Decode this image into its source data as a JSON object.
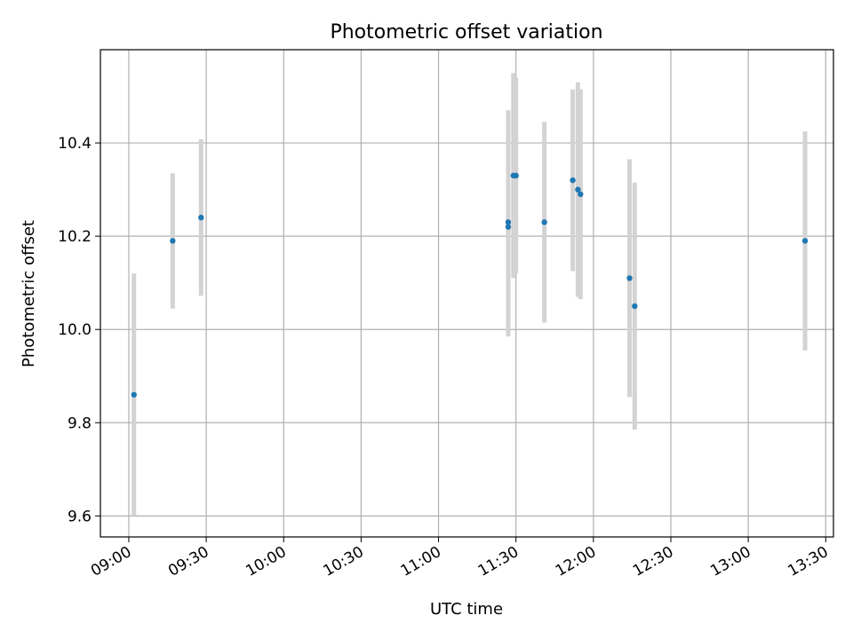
{
  "chart_data": {
    "type": "scatter",
    "title": "Photometric offset variation",
    "xlabel": "UTC time",
    "ylabel": "Photometric offset",
    "x_format": "HH:MM",
    "xlim": [
      "08:49",
      "13:33"
    ],
    "ylim": [
      9.555,
      10.6
    ],
    "x_ticks": [
      "09:00",
      "09:30",
      "10:00",
      "10:30",
      "11:00",
      "11:30",
      "12:00",
      "12:30",
      "13:00",
      "13:30"
    ],
    "y_ticks": [
      9.6,
      9.8,
      10.0,
      10.2,
      10.4
    ],
    "y_tick_labels": [
      "9.6",
      "9.8",
      "10.0",
      "10.2",
      "10.4"
    ],
    "grid": true,
    "colors": {
      "point": "#1f77b4",
      "errorbar": "#d3d3d3",
      "grid": "#b0b0b0"
    },
    "points": [
      {
        "x": "09:02",
        "y": 9.86,
        "err": 0.26
      },
      {
        "x": "09:17",
        "y": 10.19,
        "err": 0.145
      },
      {
        "x": "09:28",
        "y": 10.24,
        "err": 0.168
      },
      {
        "x": "11:27",
        "y": 10.23,
        "err": 0.24
      },
      {
        "x": "11:27",
        "y": 10.22,
        "err": 0.235
      },
      {
        "x": "11:29",
        "y": 10.33,
        "err": 0.22
      },
      {
        "x": "11:30",
        "y": 10.33,
        "err": 0.21
      },
      {
        "x": "11:41",
        "y": 10.23,
        "err": 0.215
      },
      {
        "x": "11:52",
        "y": 10.32,
        "err": 0.195
      },
      {
        "x": "11:54",
        "y": 10.3,
        "err": 0.23
      },
      {
        "x": "11:55",
        "y": 10.29,
        "err": 0.225
      },
      {
        "x": "12:14",
        "y": 10.11,
        "err": 0.255
      },
      {
        "x": "12:16",
        "y": 10.05,
        "err": 0.265
      },
      {
        "x": "13:22",
        "y": 10.19,
        "err": 0.235
      }
    ]
  }
}
